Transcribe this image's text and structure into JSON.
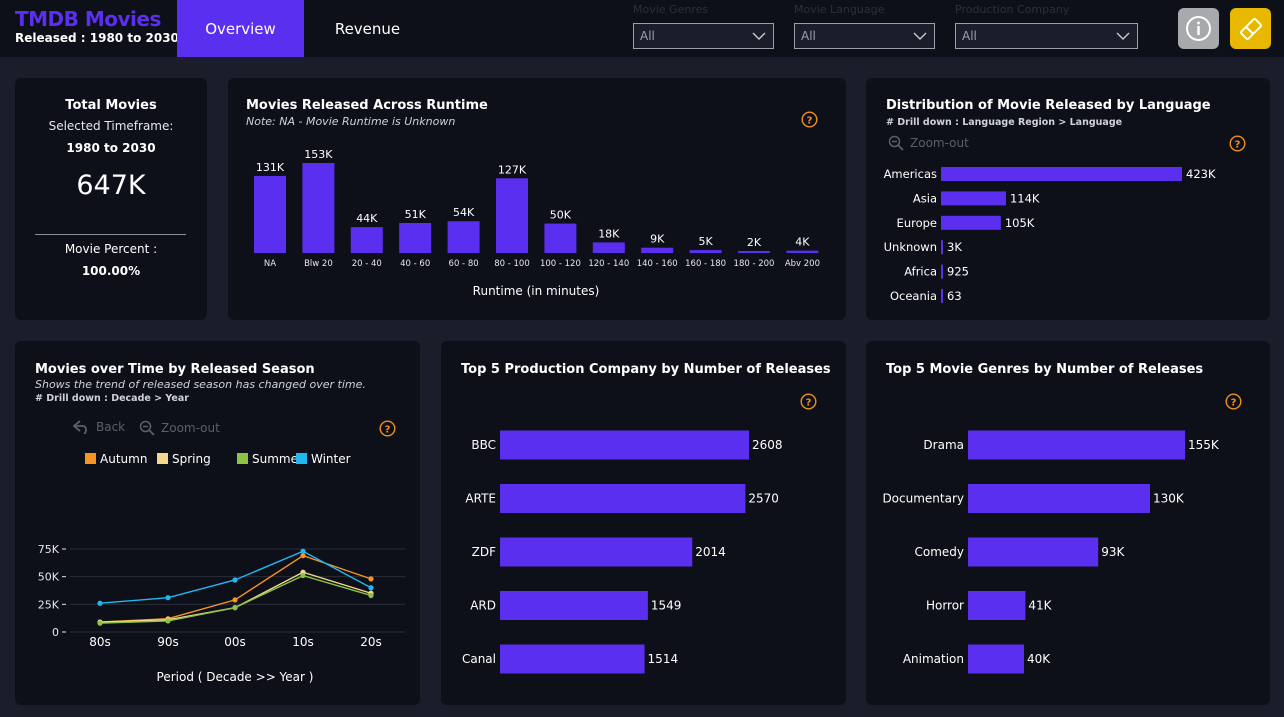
{
  "brand": {
    "title": "TMDB Movies",
    "subtitle": "Released : 1980 to 2030"
  },
  "tabs": [
    {
      "label": "Overview",
      "active": true
    },
    {
      "label": "Revenue",
      "active": false
    }
  ],
  "filters": [
    {
      "label": "Movie Genres",
      "value": "All"
    },
    {
      "label": "Movie Language",
      "value": "All"
    },
    {
      "label": "Production Company",
      "value": "All"
    }
  ],
  "toolbar": {
    "info_icon": "info-icon",
    "eraser_icon": "eraser-icon"
  },
  "colors": {
    "accent": "#5b2ff0",
    "help": "#f0901c",
    "autumn": "#f89422",
    "spring": "#f3d990",
    "summer": "#8cc342",
    "winter": "#1fb8f0"
  },
  "kpi": {
    "title": "Total Movies",
    "timeframe_label": "Selected Timeframe:",
    "timeframe_value": "1980 to 2030",
    "total": "647K",
    "percent_label": "Movie Percent :",
    "percent_value": "100.00%"
  },
  "controls": {
    "back": "Back",
    "zoom_out": "Zoom-out"
  },
  "chart_data": [
    {
      "id": "runtime",
      "type": "bar",
      "title": "Movies Released Across Runtime",
      "note": "Note: NA - Movie Runtime is Unknown",
      "xlabel": "Runtime (in minutes)",
      "categories": [
        "NA",
        "Blw 20",
        "20 - 40",
        "40 - 60",
        "60 - 80",
        "80 - 100",
        "100 - 120",
        "120 - 140",
        "140 - 160",
        "160 - 180",
        "180 - 200",
        "Abv 200"
      ],
      "values": [
        131000,
        153000,
        44000,
        51000,
        54000,
        127000,
        50000,
        18000,
        9000,
        5000,
        2000,
        4000
      ],
      "labels": [
        "131K",
        "153K",
        "44K",
        "51K",
        "54K",
        "127K",
        "50K",
        "18K",
        "9K",
        "5K",
        "2K",
        "4K"
      ]
    },
    {
      "id": "language",
      "type": "bar",
      "orientation": "horizontal",
      "title": "Distribution of Movie Released by Language",
      "drill": "# Drill down : Language Region > Language",
      "categories": [
        "Americas",
        "Asia",
        "Europe",
        "Unknown",
        "Africa",
        "Oceania"
      ],
      "values": [
        423000,
        114000,
        105000,
        3000,
        925,
        63
      ],
      "labels": [
        "423K",
        "114K",
        "105K",
        "3K",
        "925",
        "63"
      ]
    },
    {
      "id": "season",
      "type": "line",
      "title": "Movies over Time by Released Season",
      "note": "Shows the trend of released season has changed over time.",
      "drill": "# Drill down : Decade > Year",
      "xlabel": "Period ( Decade >> Year )",
      "categories": [
        "80s",
        "90s",
        "00s",
        "10s",
        "20s"
      ],
      "yticks": [
        "0",
        "25K",
        "50K",
        "75K"
      ],
      "ylim": [
        0,
        80000
      ],
      "series": [
        {
          "name": "Autumn",
          "color": "#f89422",
          "values": [
            9000,
            12000,
            29000,
            69000,
            48000
          ]
        },
        {
          "name": "Spring",
          "color": "#f3d990",
          "values": [
            9000,
            11000,
            22000,
            54000,
            35000
          ]
        },
        {
          "name": "Summer",
          "color": "#8cc342",
          "values": [
            8000,
            10000,
            22000,
            51000,
            33000
          ]
        },
        {
          "name": "Winter",
          "color": "#1fb8f0",
          "values": [
            26000,
            31000,
            47000,
            73000,
            40000
          ]
        }
      ]
    },
    {
      "id": "production",
      "type": "bar",
      "orientation": "horizontal",
      "title": "Top 5 Production Company by Number of Releases",
      "categories": [
        "BBC",
        "ARTE",
        "ZDF",
        "ARD",
        "Canal"
      ],
      "values": [
        2608,
        2570,
        2014,
        1549,
        1514
      ],
      "labels": [
        "2608",
        "2570",
        "2014",
        "1549",
        "1514"
      ]
    },
    {
      "id": "genres",
      "type": "bar",
      "orientation": "horizontal",
      "title": "Top 5 Movie Genres by Number of Releases",
      "categories": [
        "Drama",
        "Documentary",
        "Comedy",
        "Horror",
        "Animation"
      ],
      "values": [
        155000,
        130000,
        93000,
        41000,
        40000
      ],
      "labels": [
        "155K",
        "130K",
        "93K",
        "41K",
        "40K"
      ]
    }
  ]
}
